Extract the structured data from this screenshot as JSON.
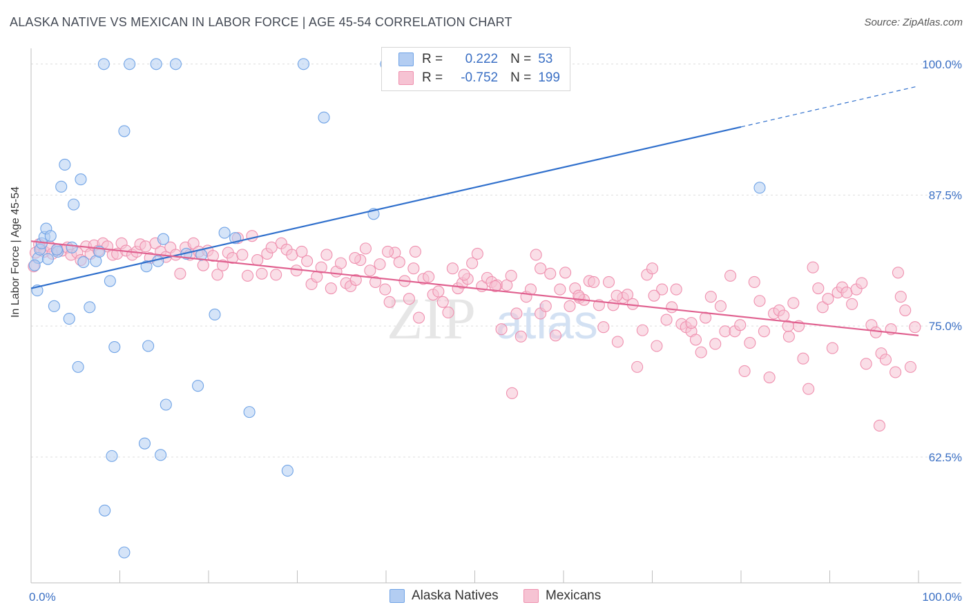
{
  "title": "ALASKA NATIVE VS MEXICAN IN LABOR FORCE | AGE 45-54 CORRELATION CHART",
  "source": "Source: ZipAtlas.com",
  "watermark": {
    "zip": "ZIP",
    "atlas": "atlas"
  },
  "legend": {
    "r_label": "R =",
    "n_label": "N =",
    "series": [
      {
        "r": "0.222",
        "n": "53"
      },
      {
        "r": "-0.752",
        "n": "199"
      }
    ]
  },
  "chart_data": {
    "type": "scatter",
    "title": "ALASKA NATIVE VS MEXICAN IN LABOR FORCE | AGE 45-54 CORRELATION CHART",
    "xlabel": "",
    "ylabel": "In Labor Force | Age 45-54",
    "xlim": [
      0,
      100
    ],
    "ylim": [
      50.5,
      101.5
    ],
    "x_tick_labels": [
      "0.0%",
      "100.0%"
    ],
    "y_ticks": [
      62.5,
      75.0,
      87.5,
      100.0
    ],
    "y_tick_labels": [
      "62.5%",
      "75.0%",
      "87.5%",
      "100.0%"
    ],
    "grid": true,
    "legend_position": "top-center",
    "series": [
      {
        "name": "Alaska Natives",
        "color": "#6fa3e6",
        "fill": "#b3cdf2",
        "trend": {
          "x0": 0,
          "y0": 78.6,
          "x1": 80,
          "y1": 94.0,
          "dash_to_x": 100,
          "dash_to_y": 97.9,
          "color": "#2f6fcc"
        },
        "points": [
          [
            0.7,
            78.4
          ],
          [
            0.8,
            81.5
          ],
          [
            1.0,
            82.3
          ],
          [
            1.2,
            82.9
          ],
          [
            1.5,
            83.5
          ],
          [
            1.7,
            84.3
          ],
          [
            1.9,
            81.4
          ],
          [
            2.2,
            83.6
          ],
          [
            2.6,
            76.9
          ],
          [
            3.0,
            82.1
          ],
          [
            3.4,
            88.3
          ],
          [
            3.8,
            90.4
          ],
          [
            4.3,
            75.7
          ],
          [
            4.6,
            82.5
          ],
          [
            4.8,
            86.6
          ],
          [
            5.3,
            71.1
          ],
          [
            5.6,
            89.0
          ],
          [
            5.9,
            81.1
          ],
          [
            6.6,
            76.8
          ],
          [
            7.3,
            81.2
          ],
          [
            7.7,
            82.1
          ],
          [
            8.3,
            57.4
          ],
          [
            8.9,
            79.3
          ],
          [
            9.1,
            62.6
          ],
          [
            9.4,
            73.0
          ],
          [
            10.5,
            53.4
          ],
          [
            10.5,
            93.6
          ],
          [
            11.1,
            100.0
          ],
          [
            12.8,
            63.8
          ],
          [
            13.0,
            80.7
          ],
          [
            13.2,
            73.1
          ],
          [
            14.3,
            81.2
          ],
          [
            14.6,
            62.7
          ],
          [
            14.9,
            83.3
          ],
          [
            15.2,
            67.5
          ],
          [
            16.3,
            100.0
          ],
          [
            17.5,
            81.9
          ],
          [
            18.8,
            69.3
          ],
          [
            19.2,
            81.8
          ],
          [
            20.7,
            76.1
          ],
          [
            21.8,
            83.9
          ],
          [
            23.0,
            83.4
          ],
          [
            24.6,
            66.8
          ],
          [
            28.9,
            61.2
          ],
          [
            30.7,
            100.0
          ],
          [
            33.0,
            94.9
          ],
          [
            38.6,
            85.7
          ],
          [
            82.1,
            88.2
          ],
          [
            8.2,
            100.0
          ],
          [
            14.1,
            100.0
          ],
          [
            40.0,
            100.0
          ],
          [
            0.4,
            80.8
          ],
          [
            2.9,
            82.3
          ]
        ]
      },
      {
        "name": "Mexicans",
        "color": "#ef8fae",
        "fill": "#f6c3d3",
        "trend": {
          "x0": 0,
          "y0": 83.1,
          "x1": 100,
          "y1": 74.1,
          "color": "#e0608f"
        },
        "points": [
          [
            0.3,
            80.7
          ],
          [
            0.5,
            82.0
          ],
          [
            0.9,
            82.8
          ],
          [
            1.1,
            82.4
          ],
          [
            1.5,
            82.1
          ],
          [
            2.1,
            82.6
          ],
          [
            2.4,
            81.9
          ],
          [
            3.0,
            82.3
          ],
          [
            3.5,
            82.2
          ],
          [
            4.1,
            82.5
          ],
          [
            4.5,
            81.8
          ],
          [
            5.2,
            82.0
          ],
          [
            5.6,
            81.3
          ],
          [
            6.2,
            82.6
          ],
          [
            6.7,
            81.9
          ],
          [
            7.1,
            82.7
          ],
          [
            7.6,
            82.2
          ],
          [
            8.1,
            82.9
          ],
          [
            8.6,
            82.6
          ],
          [
            9.2,
            81.8
          ],
          [
            9.7,
            81.9
          ],
          [
            10.2,
            82.9
          ],
          [
            10.7,
            82.2
          ],
          [
            11.4,
            81.8
          ],
          [
            11.9,
            82.1
          ],
          [
            12.3,
            82.8
          ],
          [
            12.9,
            82.6
          ],
          [
            13.4,
            81.5
          ],
          [
            14.0,
            82.9
          ],
          [
            14.6,
            82.1
          ],
          [
            15.2,
            81.6
          ],
          [
            15.7,
            82.5
          ],
          [
            16.3,
            81.8
          ],
          [
            16.8,
            80.0
          ],
          [
            17.4,
            82.5
          ],
          [
            17.9,
            81.8
          ],
          [
            18.3,
            82.9
          ],
          [
            18.9,
            82.1
          ],
          [
            19.4,
            80.8
          ],
          [
            19.9,
            82.2
          ],
          [
            20.5,
            81.7
          ],
          [
            21.0,
            79.9
          ],
          [
            21.6,
            80.8
          ],
          [
            22.2,
            82.0
          ],
          [
            22.7,
            81.5
          ],
          [
            23.3,
            83.4
          ],
          [
            23.8,
            81.8
          ],
          [
            24.4,
            79.8
          ],
          [
            24.9,
            83.6
          ],
          [
            25.5,
            81.3
          ],
          [
            26.0,
            80.0
          ],
          [
            26.6,
            81.9
          ],
          [
            27.1,
            82.5
          ],
          [
            27.6,
            79.9
          ],
          [
            28.2,
            82.9
          ],
          [
            28.8,
            82.3
          ],
          [
            29.4,
            81.8
          ],
          [
            29.9,
            80.3
          ],
          [
            30.5,
            82.1
          ],
          [
            31.1,
            81.2
          ],
          [
            31.6,
            79.0
          ],
          [
            32.2,
            79.7
          ],
          [
            32.7,
            80.6
          ],
          [
            33.3,
            81.8
          ],
          [
            33.8,
            78.6
          ],
          [
            34.4,
            80.2
          ],
          [
            34.9,
            81.0
          ],
          [
            35.5,
            79.1
          ],
          [
            36.0,
            78.8
          ],
          [
            36.6,
            79.4
          ],
          [
            37.1,
            81.3
          ],
          [
            37.7,
            82.4
          ],
          [
            38.2,
            80.3
          ],
          [
            38.8,
            79.2
          ],
          [
            39.3,
            80.9
          ],
          [
            39.9,
            78.5
          ],
          [
            40.4,
            77.3
          ],
          [
            41.0,
            82.0
          ],
          [
            41.5,
            81.1
          ],
          [
            42.1,
            79.3
          ],
          [
            42.6,
            77.6
          ],
          [
            43.1,
            80.5
          ],
          [
            43.7,
            75.8
          ],
          [
            44.2,
            79.5
          ],
          [
            44.8,
            79.7
          ],
          [
            45.3,
            78.0
          ],
          [
            45.9,
            78.3
          ],
          [
            46.4,
            77.3
          ],
          [
            47.0,
            76.3
          ],
          [
            47.5,
            80.5
          ],
          [
            48.1,
            78.6
          ],
          [
            48.6,
            79.1
          ],
          [
            49.2,
            79.5
          ],
          [
            49.7,
            81.0
          ],
          [
            50.3,
            81.9
          ],
          [
            50.8,
            78.8
          ],
          [
            51.4,
            79.6
          ],
          [
            51.9,
            79.2
          ],
          [
            52.5,
            78.9
          ],
          [
            53.0,
            74.7
          ],
          [
            53.6,
            78.9
          ],
          [
            54.1,
            79.8
          ],
          [
            54.7,
            76.2
          ],
          [
            55.2,
            74.0
          ],
          [
            55.8,
            77.8
          ],
          [
            56.3,
            78.5
          ],
          [
            56.9,
            81.8
          ],
          [
            57.4,
            76.2
          ],
          [
            58.0,
            76.9
          ],
          [
            58.5,
            80.0
          ],
          [
            59.1,
            74.1
          ],
          [
            59.6,
            78.5
          ],
          [
            60.2,
            80.1
          ],
          [
            60.7,
            76.9
          ],
          [
            61.3,
            78.6
          ],
          [
            61.8,
            77.7
          ],
          [
            62.3,
            77.5
          ],
          [
            62.9,
            79.3
          ],
          [
            63.4,
            79.2
          ],
          [
            64.0,
            77.0
          ],
          [
            64.5,
            74.9
          ],
          [
            65.1,
            79.2
          ],
          [
            65.6,
            77.0
          ],
          [
            66.1,
            73.5
          ],
          [
            66.7,
            77.7
          ],
          [
            67.2,
            78.0
          ],
          [
            67.8,
            77.1
          ],
          [
            68.3,
            71.1
          ],
          [
            68.9,
            74.6
          ],
          [
            69.4,
            79.9
          ],
          [
            70.0,
            80.5
          ],
          [
            70.5,
            73.1
          ],
          [
            71.1,
            78.5
          ],
          [
            71.6,
            75.6
          ],
          [
            72.2,
            76.8
          ],
          [
            72.7,
            78.5
          ],
          [
            73.3,
            75.2
          ],
          [
            73.8,
            74.9
          ],
          [
            74.4,
            74.5
          ],
          [
            74.9,
            73.7
          ],
          [
            75.5,
            72.5
          ],
          [
            76.0,
            75.8
          ],
          [
            76.6,
            77.8
          ],
          [
            77.1,
            73.3
          ],
          [
            77.7,
            76.9
          ],
          [
            78.2,
            74.5
          ],
          [
            78.8,
            79.8
          ],
          [
            79.3,
            74.5
          ],
          [
            79.9,
            75.1
          ],
          [
            80.4,
            70.7
          ],
          [
            81.0,
            73.4
          ],
          [
            81.5,
            79.2
          ],
          [
            82.1,
            77.4
          ],
          [
            82.6,
            74.5
          ],
          [
            83.2,
            70.1
          ],
          [
            83.7,
            76.2
          ],
          [
            84.3,
            76.5
          ],
          [
            84.8,
            76.0
          ],
          [
            85.4,
            74.0
          ],
          [
            85.9,
            77.2
          ],
          [
            86.5,
            75.0
          ],
          [
            87.0,
            71.9
          ],
          [
            87.6,
            69.0
          ],
          [
            88.1,
            80.6
          ],
          [
            88.7,
            78.6
          ],
          [
            89.2,
            76.8
          ],
          [
            89.8,
            77.6
          ],
          [
            90.3,
            72.9
          ],
          [
            90.9,
            78.2
          ],
          [
            91.4,
            78.7
          ],
          [
            91.9,
            78.2
          ],
          [
            92.5,
            77.1
          ],
          [
            93.0,
            78.5
          ],
          [
            93.6,
            79.1
          ],
          [
            94.1,
            71.4
          ],
          [
            94.7,
            75.1
          ],
          [
            95.2,
            74.4
          ],
          [
            95.8,
            72.4
          ],
          [
            96.3,
            71.8
          ],
          [
            96.9,
            74.7
          ],
          [
            97.4,
            70.6
          ],
          [
            98.0,
            77.8
          ],
          [
            98.5,
            76.5
          ],
          [
            99.1,
            71.1
          ],
          [
            99.6,
            74.9
          ],
          [
            95.6,
            65.5
          ],
          [
            54.2,
            68.6
          ],
          [
            57.4,
            80.5
          ],
          [
            61.7,
            77.9
          ],
          [
            66.0,
            77.9
          ],
          [
            70.2,
            77.9
          ],
          [
            74.4,
            75.3
          ],
          [
            97.7,
            80.1
          ],
          [
            85.3,
            75.0
          ],
          [
            52.3,
            78.8
          ],
          [
            48.8,
            79.9
          ],
          [
            43.3,
            82.1
          ],
          [
            40.2,
            82.1
          ],
          [
            36.5,
            81.5
          ]
        ]
      }
    ]
  },
  "bottom_legend": [
    "Alaska Natives",
    "Mexicans"
  ]
}
